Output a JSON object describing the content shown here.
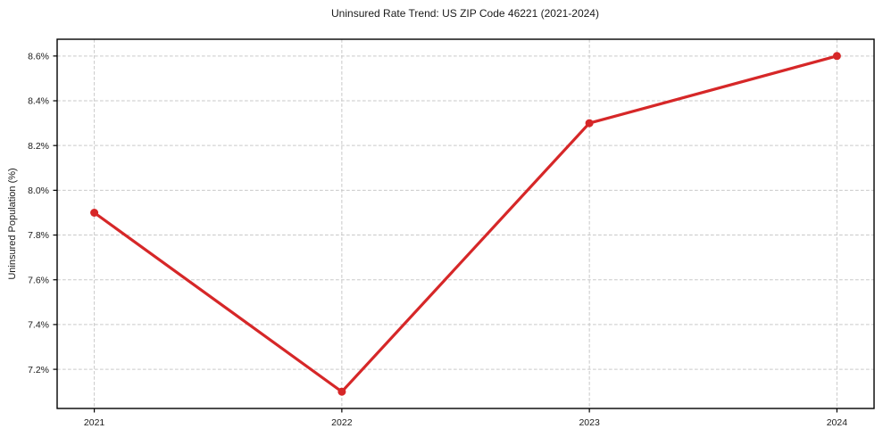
{
  "chart_data": {
    "type": "line",
    "title": "Uninsured Rate Trend: US ZIP Code 46221 (2021-2024)",
    "xlabel": "",
    "ylabel": "Uninsured Population (%)",
    "x": [
      2021,
      2022,
      2023,
      2024
    ],
    "xtick_labels": [
      "2021",
      "2022",
      "2023",
      "2024"
    ],
    "series": [
      {
        "name": "uninsured-rate",
        "values": [
          7.9,
          7.1,
          8.3,
          8.6
        ],
        "color": "#d62728"
      }
    ],
    "yticks": [
      7.2,
      7.4,
      7.6,
      7.8,
      8.0,
      8.2,
      8.4,
      8.6
    ],
    "ytick_suffix": "%",
    "ytick_decimals": 1,
    "xlim": [
      2020.85,
      2024.15
    ],
    "ylim": [
      7.025,
      8.675
    ],
    "grid": true,
    "legend": "none",
    "colors": {
      "line": "#d62728",
      "marker": "#d62728",
      "grid": "#c9c9c9",
      "spine": "#000000",
      "tick": "#000000",
      "text": "#1a1a1a",
      "background": "#ffffff"
    }
  }
}
